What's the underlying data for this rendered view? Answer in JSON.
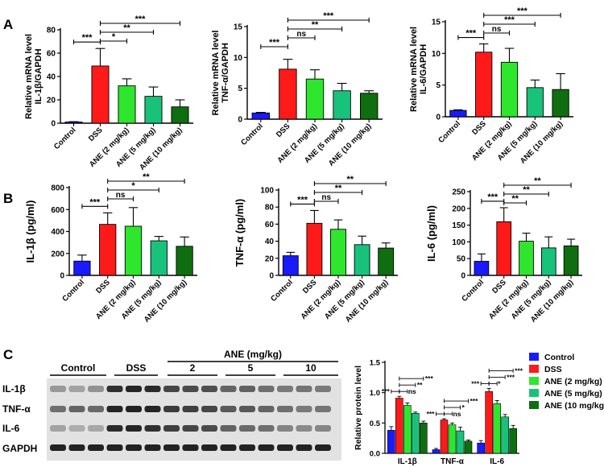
{
  "figure_labels": {
    "a": "A",
    "b": "B",
    "c": "C"
  },
  "colors": {
    "control": "#1a1aff",
    "dss": "#ff1a1a",
    "ane2": "#2ee62e",
    "ane5": "#19c27a",
    "ane10": "#0f6e0f"
  },
  "chart_data": [
    {
      "id": "a1",
      "type": "bar",
      "ylabel_line1": "Relative mRNA level",
      "ylabel_line2": "IL-1β/GAPDH",
      "categories": [
        "Control",
        "DSS",
        "ANE (2 mg/kg)",
        "ANE (5 mg/kg)",
        "ANE (10 mg/kg)"
      ],
      "values": [
        1,
        49,
        32,
        23,
        14
      ],
      "errors": [
        0.3,
        15,
        6,
        8,
        6
      ],
      "ylim": [
        0,
        80
      ],
      "ticks": [
        0,
        20,
        40,
        60,
        80
      ],
      "sig": [
        {
          "from": 0,
          "to": 1,
          "label": "***"
        },
        {
          "from": 1,
          "to": 2,
          "label": "*"
        },
        {
          "from": 1,
          "to": 3,
          "label": "**"
        },
        {
          "from": 1,
          "to": 4,
          "label": "***"
        }
      ]
    },
    {
      "id": "a2",
      "type": "bar",
      "ylabel_line1": "Relative mRNA level",
      "ylabel_line2": "TNF-α/GAPDH",
      "categories": [
        "Control",
        "DSS",
        "ANE (2 mg/kg)",
        "ANE (5 mg/kg)",
        "ANE (10 mg/kg)"
      ],
      "values": [
        1,
        8.1,
        6.5,
        4.6,
        4.2
      ],
      "errors": [
        0.1,
        1.6,
        1.5,
        1.2,
        0.4
      ],
      "ylim": [
        0,
        15
      ],
      "ticks": [
        0,
        5,
        10,
        15
      ],
      "sig": [
        {
          "from": 0,
          "to": 1,
          "label": "***"
        },
        {
          "from": 1,
          "to": 2,
          "label": "ns"
        },
        {
          "from": 1,
          "to": 3,
          "label": "**"
        },
        {
          "from": 1,
          "to": 4,
          "label": "***"
        }
      ]
    },
    {
      "id": "a3",
      "type": "bar",
      "ylabel_line1": "Relative mRNA level",
      "ylabel_line2": "IL-6/GAPDH",
      "categories": [
        "Control",
        "DSS",
        "ANE (2 mg/kg)",
        "ANE (5 mg/kg)",
        "ANE (10 mg/kg)"
      ],
      "values": [
        1,
        10.2,
        8.6,
        4.6,
        4.3
      ],
      "errors": [
        0.1,
        1.3,
        2.2,
        1.2,
        2.5
      ],
      "ylim": [
        0,
        15
      ],
      "ticks": [
        0,
        5,
        10,
        15
      ],
      "sig": [
        {
          "from": 0,
          "to": 1,
          "label": "***"
        },
        {
          "from": 1,
          "to": 2,
          "label": "ns"
        },
        {
          "from": 1,
          "to": 3,
          "label": "***"
        },
        {
          "from": 1,
          "to": 4,
          "label": "***"
        }
      ]
    },
    {
      "id": "b1",
      "type": "bar",
      "ylabel_line1": "IL-1β (pg/ml)",
      "ylabel_line2": "",
      "categories": [
        "Control",
        "DSS",
        "ANE (2 mg/kg)",
        "ANE (5 mg/kg)",
        "ANE (10 mg/kg)"
      ],
      "values": [
        130,
        465,
        448,
        315,
        265
      ],
      "errors": [
        55,
        105,
        170,
        40,
        85
      ],
      "ylim": [
        0,
        800
      ],
      "ticks": [
        0,
        200,
        400,
        600,
        800
      ],
      "sig": [
        {
          "from": 0,
          "to": 1,
          "label": "***"
        },
        {
          "from": 1,
          "to": 2,
          "label": "ns"
        },
        {
          "from": 1,
          "to": 3,
          "label": "*"
        },
        {
          "from": 1,
          "to": 4,
          "label": "**"
        }
      ]
    },
    {
      "id": "b2",
      "type": "bar",
      "ylabel_line1": "TNF-α (pg/ml)",
      "ylabel_line2": "",
      "categories": [
        "Control",
        "DSS",
        "ANE (2 mg/kg)",
        "ANE (5 mg/kg)",
        "ANE (10 mg/kg)"
      ],
      "values": [
        23,
        61,
        54,
        36,
        32
      ],
      "errors": [
        4,
        15,
        11,
        10,
        6
      ],
      "ylim": [
        0,
        100
      ],
      "ticks": [
        0,
        20,
        40,
        60,
        80,
        100
      ],
      "sig": [
        {
          "from": 0,
          "to": 1,
          "label": "***"
        },
        {
          "from": 1,
          "to": 2,
          "label": "ns"
        },
        {
          "from": 1,
          "to": 3,
          "label": "**"
        },
        {
          "from": 1,
          "to": 4,
          "label": "**"
        }
      ]
    },
    {
      "id": "b3",
      "type": "bar",
      "ylabel_line1": "IL-6 (pg/ml)",
      "ylabel_line2": "",
      "categories": [
        "Control",
        "DSS",
        "ANE (2 mg/kg)",
        "ANE (5 mg/kg)",
        "ANE (10 mg/kg)"
      ],
      "values": [
        42,
        160,
        102,
        82,
        88
      ],
      "errors": [
        22,
        42,
        24,
        33,
        20
      ],
      "ylim": [
        0,
        250
      ],
      "ticks": [
        0,
        50,
        100,
        150,
        200,
        250
      ],
      "sig": [
        {
          "from": 0,
          "to": 1,
          "label": "***"
        },
        {
          "from": 1,
          "to": 2,
          "label": "**"
        },
        {
          "from": 1,
          "to": 3,
          "label": "**"
        },
        {
          "from": 1,
          "to": 4,
          "label": "**"
        }
      ]
    },
    {
      "id": "c_quant",
      "type": "bar",
      "ylabel": "Relative protein level",
      "groups": [
        "IL-1β",
        "TNF-α",
        "IL-6"
      ],
      "series": [
        {
          "name": "Control",
          "values": [
            0.38,
            0.06,
            0.17
          ],
          "errors": [
            0.06,
            0.02,
            0.04
          ]
        },
        {
          "name": "DSS",
          "values": [
            0.91,
            0.55,
            1.02
          ],
          "errors": [
            0.03,
            0.02,
            0.05
          ]
        },
        {
          "name": "ANE (2 mg/kg)",
          "values": [
            0.79,
            0.47,
            0.82
          ],
          "errors": [
            0.04,
            0.03,
            0.05
          ]
        },
        {
          "name": "ANE (5 mg/kg)",
          "values": [
            0.66,
            0.37,
            0.6
          ],
          "errors": [
            0.02,
            0.06,
            0.04
          ]
        },
        {
          "name": "ANE (10 mg/kg)",
          "values": [
            0.5,
            0.2,
            0.41
          ],
          "errors": [
            0.03,
            0.02,
            0.05
          ]
        }
      ],
      "ylim": [
        0,
        1.5
      ],
      "ticks": [
        "0.0",
        "0.5",
        "1.0",
        "1.5"
      ],
      "sig": [
        {
          "group": 0,
          "from": 0,
          "to": 1,
          "label": "***"
        },
        {
          "group": 0,
          "from": 1,
          "to": 2,
          "label": "ns"
        },
        {
          "group": 0,
          "from": 1,
          "to": 3,
          "label": "**"
        },
        {
          "group": 0,
          "from": 1,
          "to": 4,
          "label": "***"
        },
        {
          "group": 1,
          "from": 0,
          "to": 1,
          "label": "***"
        },
        {
          "group": 1,
          "from": 1,
          "to": 2,
          "label": "ns"
        },
        {
          "group": 1,
          "from": 1,
          "to": 3,
          "label": "*"
        },
        {
          "group": 1,
          "from": 1,
          "to": 4,
          "label": "***"
        },
        {
          "group": 2,
          "from": 0,
          "to": 1,
          "label": "***"
        },
        {
          "group": 2,
          "from": 1,
          "to": 2,
          "label": "*"
        },
        {
          "group": 2,
          "from": 1,
          "to": 3,
          "label": "***"
        },
        {
          "group": 2,
          "from": 1,
          "to": 4,
          "label": "***"
        }
      ]
    }
  ],
  "western_blot": {
    "group_labels": [
      "Control",
      "DSS"
    ],
    "ane_header": "ANE (mg/kg)",
    "dose_labels": [
      "2",
      "5",
      "10"
    ],
    "rows": [
      "IL-1β",
      "TNF-α",
      "IL-6",
      "GAPDH"
    ]
  }
}
